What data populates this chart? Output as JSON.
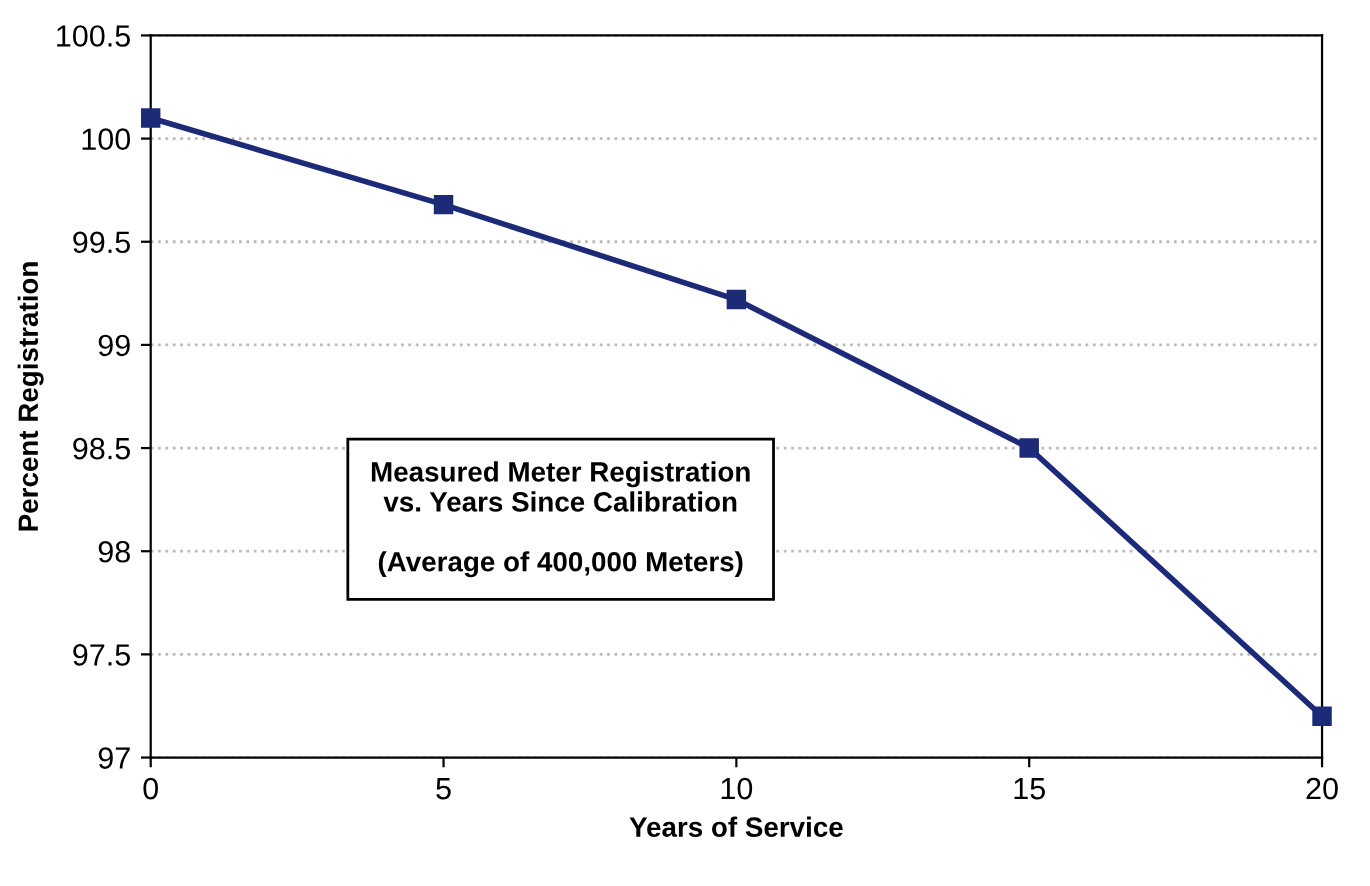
{
  "chart_data": {
    "type": "line",
    "xlabel": "Years of Service",
    "ylabel": "Percent Registration",
    "x": [
      0,
      5,
      10,
      15,
      20
    ],
    "series": [
      {
        "color": "#1c2a78",
        "values": [
          100.1,
          99.68,
          99.22,
          98.5,
          97.2
        ]
      }
    ],
    "xlim": [
      0,
      20
    ],
    "xticks": [
      0,
      5,
      10,
      15,
      20
    ],
    "ylim": [
      97,
      100.5
    ],
    "yticks": [
      97,
      97.5,
      98,
      98.5,
      99,
      99.5,
      100,
      100.5
    ],
    "grid": "y",
    "marker": "square",
    "line_style": "solid",
    "annotations": [
      "Measured Meter Registration\nvs. Years Since Calibration\n\n(Average of 400,000 Meters)"
    ]
  }
}
